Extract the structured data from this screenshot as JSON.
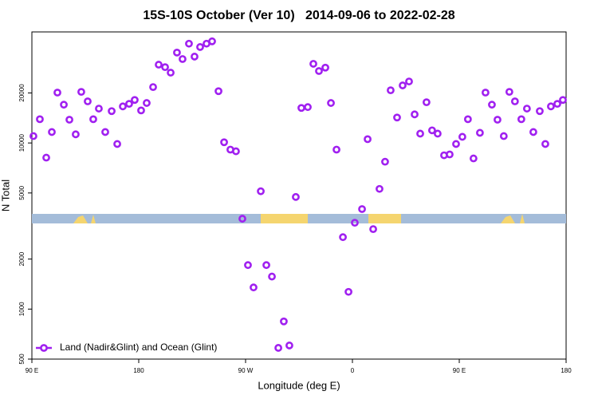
{
  "chart_data": {
    "type": "scatter",
    "title": "15S-10S October (Ver 10)   2014-09-06 to 2022-02-28",
    "x_label": "Longitude (deg E)",
    "y_label": "N Total",
    "log_y": true,
    "legend": "bottom-left",
    "xlim": [
      90,
      540
    ],
    "ylim": [
      500,
      46600
    ],
    "xticks": [
      {
        "value": 90,
        "label": "90 E"
      },
      180,
      {
        "value": 270,
        "label": "90 W"
      },
      {
        "value": 360,
        "label": "0"
      },
      {
        "value": 450,
        "label": "90 E"
      },
      {
        "value": 540,
        "label": "180"
      }
    ],
    "yticks": [
      500,
      1000,
      2000,
      5000,
      10000,
      20000
    ],
    "x": [
      91.3,
      96.7,
      102.1,
      106.8,
      111.5,
      116.9,
      121.6,
      126.9,
      131.6,
      137.0,
      141.7,
      146.4,
      151.8,
      157.2,
      161.9,
      166.6,
      171.9,
      176.6,
      182.0,
      186.7,
      192.1,
      196.8,
      202.2,
      206.9,
      212.2,
      216.9,
      222.3,
      227.0,
      231.7,
      237.1,
      241.8,
      247.2,
      251.9,
      257.2,
      261.9,
      267.3,
      272.0,
      276.7,
      282.8,
      287.5,
      292.2,
      297.6,
      302.2,
      306.9,
      312.3,
      317.0,
      322.4,
      327.1,
      331.8,
      337.2,
      341.9,
      346.6,
      352.0,
      356.7,
      362.0,
      368.1,
      372.8,
      377.5,
      382.8,
      387.5,
      392.2,
      397.6,
      402.3,
      407.7,
      412.4,
      417.1,
      422.4,
      427.1,
      431.8,
      437.2,
      441.9,
      447.3,
      452.6,
      457.3,
      462.0,
      467.4,
      472.1,
      477.5,
      482.2,
      487.5,
      492.2,
      496.9,
      502.3,
      507.0,
      512.4,
      517.8,
      522.5,
      527.2,
      532.6,
      537.3
    ],
    "series": [
      {
        "name": "Land (Nadir&Glint) and Ocean (Glint)",
        "color": "#a020f0",
        "values": [
          11000,
          13900,
          8160,
          11640,
          20100,
          17000,
          13800,
          11270,
          20300,
          17800,
          13900,
          16100,
          11640,
          15550,
          9860,
          16600,
          17200,
          18150,
          15700,
          17400,
          21700,
          29600,
          28600,
          26500,
          35000,
          32000,
          39600,
          33100,
          37800,
          39600,
          40900,
          20500,
          10100,
          9120,
          8910,
          3500,
          1840,
          1350,
          5120,
          1840,
          1570,
          584,
          843,
          604,
          4730,
          16250,
          16440,
          29950,
          27100,
          28400,
          17400,
          9120,
          2710,
          1270,
          3310,
          4000,
          10540,
          3030,
          5290,
          7710,
          20750,
          14230,
          22200,
          23450,
          14860,
          11380,
          17580,
          11910,
          11380,
          8430,
          8530,
          9860,
          10890,
          13900,
          8070,
          11510,
          20100,
          17000,
          13800,
          11000,
          20300,
          17800,
          13900,
          16100,
          11640,
          15550,
          9860,
          16600,
          17200,
          18150
        ]
      }
    ]
  }
}
